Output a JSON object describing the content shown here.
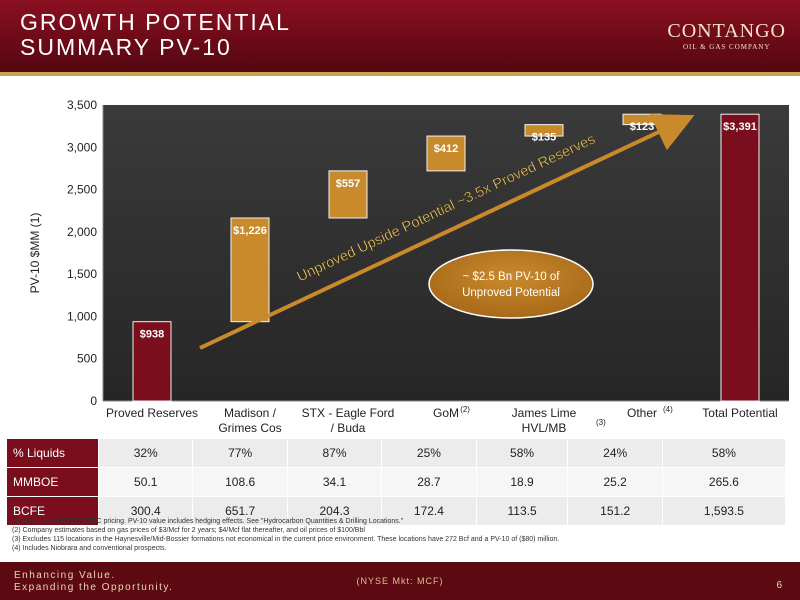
{
  "header": {
    "title_line1": "GROWTH POTENTIAL",
    "title_line2": "SUMMARY PV-10",
    "logo_main": "CONTANGO",
    "logo_sub": "OIL & GAS COMPANY"
  },
  "colors": {
    "background": "#2b2b2b",
    "maroon": "#7a0e1c",
    "gold": "#c98a2c",
    "gold_dark": "#b2741f"
  },
  "chart_data": {
    "type": "bar",
    "subtype": "waterfall",
    "ylabel": "PV-10 $MM (1)",
    "ylim": [
      0,
      3500
    ],
    "yticks": [
      "0",
      "500",
      "1,000",
      "1,500",
      "2,000",
      "2,500",
      "3,000",
      "3,500"
    ],
    "ytick_values": [
      0,
      500,
      1000,
      1500,
      2000,
      2500,
      3000,
      3500
    ],
    "grid": false,
    "categories": [
      {
        "line1": "Proved Reserves",
        "line2": "",
        "sup": ""
      },
      {
        "line1": "Madison /",
        "line2": "Grimes Cos",
        "sup": ""
      },
      {
        "line1": "STX - Eagle Ford",
        "line2": "/ Buda",
        "sup": ""
      },
      {
        "line1": "GoM",
        "line2": "",
        "sup": "(2)"
      },
      {
        "line1": "James Lime",
        "line2": "HVL/MB",
        "sup": "(3)"
      },
      {
        "line1": "Other",
        "line2": "",
        "sup": "(4)"
      },
      {
        "line1": "Total Potential",
        "line2": "",
        "sup": ""
      }
    ],
    "bars": [
      {
        "base": 0,
        "value": 938,
        "label": "$938",
        "kind": "total"
      },
      {
        "base": 938,
        "value": 1226,
        "label": "$1,226",
        "kind": "increment"
      },
      {
        "base": 2164,
        "value": 557,
        "label": "$557",
        "kind": "increment"
      },
      {
        "base": 2721,
        "value": 412,
        "label": "$412",
        "kind": "increment"
      },
      {
        "base": 3133,
        "value": 135,
        "label": "$135",
        "kind": "increment"
      },
      {
        "base": 3268,
        "value": 123,
        "label": "$123",
        "kind": "increment"
      },
      {
        "base": 0,
        "value": 3391,
        "label": "$3,391",
        "kind": "total"
      }
    ],
    "arrow_text": "Unproved Upside Potential ~3.5x Proved Reserves",
    "callout_line1": "~ $2.5 Bn PV-10 of",
    "callout_line2": "Unproved  Potential"
  },
  "table": {
    "rows": [
      {
        "label": "% Liquids",
        "values": [
          "32%",
          "77%",
          "87%",
          "25%",
          "58%",
          "24%",
          "58%"
        ]
      },
      {
        "label": "MMBOE",
        "values": [
          "50.1",
          "108.6",
          "34.1",
          "28.7",
          "18.9",
          "25.2",
          "265.6"
        ]
      },
      {
        "label": "BCFE",
        "values": [
          "300.4",
          "651.7",
          "204.3",
          "172.4",
          "113.5",
          "151.2",
          "1,593.5"
        ]
      }
    ]
  },
  "footnotes": [
    "(1)  Based on 9/30/2013 SEC pricing. PV-10 value includes hedging effects. See \"Hydrocarbon Quantities & Drilling Locations.\"",
    "(2)  Company estimates based on gas prices of $3/Mcf for 2 years; $4/Mcf flat thereafter, and oil prices of $100/Bbl",
    "(3)  Excludes 115 locations in the Haynesville/Mid-Bossier formations not economical in the current price environment. These locations have 272 Bcf and a PV-10 of ($80) million.",
    "(4)  Includes Niobrara and conventional prospects."
  ],
  "footer": {
    "tagline1": "Enhancing Value.",
    "tagline2": "Expanding the Opportunity.",
    "ticker": "(NYSE Mkt: MCF)",
    "page": "6"
  }
}
